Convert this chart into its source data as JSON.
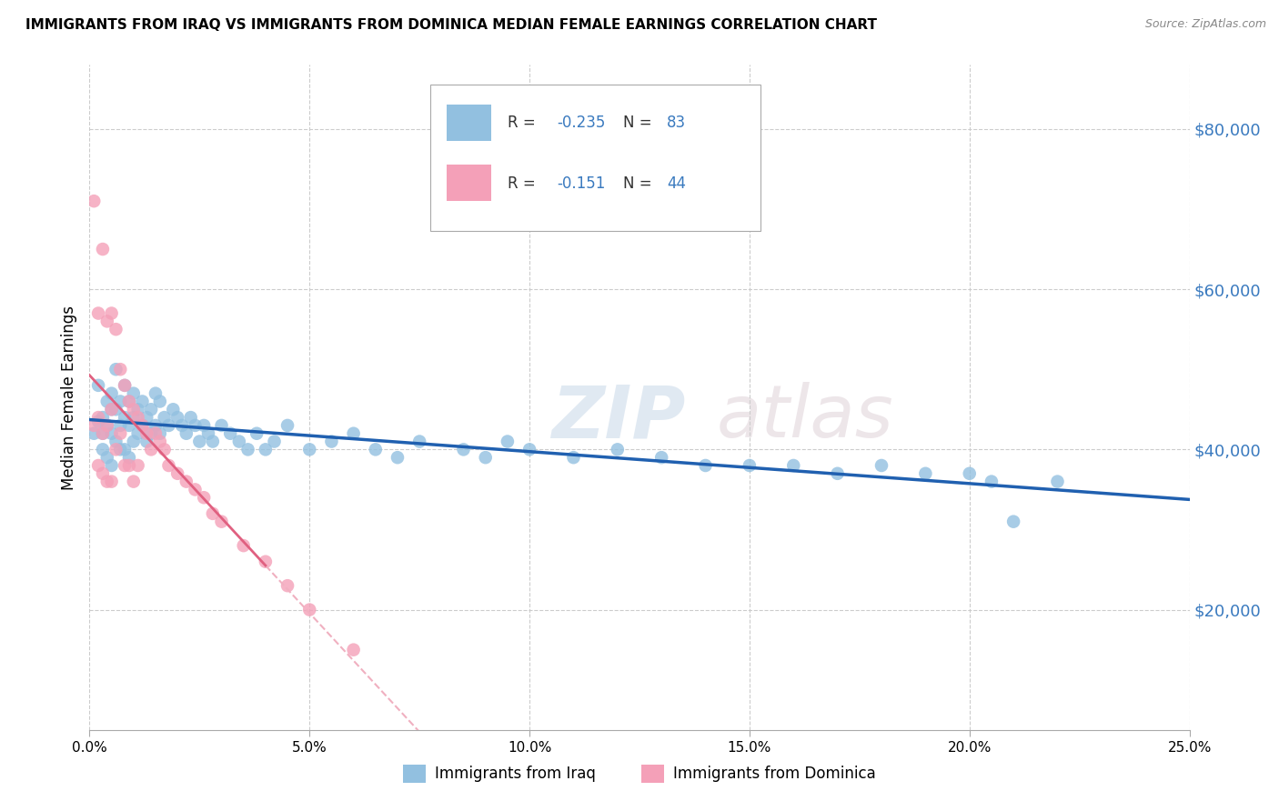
{
  "title": "IMMIGRANTS FROM IRAQ VS IMMIGRANTS FROM DOMINICA MEDIAN FEMALE EARNINGS CORRELATION CHART",
  "source": "Source: ZipAtlas.com",
  "ylabel": "Median Female Earnings",
  "y_ticks": [
    20000,
    40000,
    60000,
    80000
  ],
  "y_tick_labels": [
    "$20,000",
    "$40,000",
    "$60,000",
    "$80,000"
  ],
  "xlim": [
    0.0,
    0.25
  ],
  "ylim": [
    5000,
    88000
  ],
  "iraq_R": -0.235,
  "iraq_N": 83,
  "dominica_R": -0.151,
  "dominica_N": 44,
  "iraq_color": "#92c0e0",
  "dominica_color": "#f4a0b8",
  "iraq_line_color": "#2060b0",
  "dominica_line_solid_color": "#e06080",
  "dominica_line_dash_color": "#f0b0c0",
  "watermark_zip": "ZIP",
  "watermark_atlas": "atlas",
  "legend_label_iraq": "Immigrants from Iraq",
  "legend_label_dominica": "Immigrants from Dominica",
  "iraq_scatter_x": [
    0.001,
    0.002,
    0.002,
    0.003,
    0.003,
    0.003,
    0.004,
    0.004,
    0.004,
    0.005,
    0.005,
    0.005,
    0.005,
    0.006,
    0.006,
    0.006,
    0.007,
    0.007,
    0.007,
    0.008,
    0.008,
    0.008,
    0.009,
    0.009,
    0.009,
    0.01,
    0.01,
    0.01,
    0.011,
    0.011,
    0.012,
    0.012,
    0.013,
    0.013,
    0.014,
    0.014,
    0.015,
    0.015,
    0.016,
    0.016,
    0.017,
    0.018,
    0.019,
    0.02,
    0.021,
    0.022,
    0.023,
    0.024,
    0.025,
    0.026,
    0.027,
    0.028,
    0.03,
    0.032,
    0.034,
    0.036,
    0.038,
    0.04,
    0.042,
    0.045,
    0.05,
    0.055,
    0.06,
    0.065,
    0.07,
    0.075,
    0.085,
    0.09,
    0.095,
    0.1,
    0.11,
    0.12,
    0.13,
    0.14,
    0.15,
    0.16,
    0.17,
    0.18,
    0.19,
    0.2,
    0.205,
    0.21,
    0.22
  ],
  "iraq_scatter_y": [
    42000,
    43500,
    48000,
    44000,
    42000,
    40000,
    46000,
    43000,
    39000,
    47000,
    45000,
    42000,
    38000,
    50000,
    45000,
    41000,
    46000,
    43000,
    40000,
    48000,
    44000,
    40000,
    46000,
    43000,
    39000,
    47000,
    44000,
    41000,
    45000,
    42000,
    46000,
    43000,
    44000,
    41000,
    45000,
    42000,
    47000,
    43000,
    46000,
    42000,
    44000,
    43000,
    45000,
    44000,
    43000,
    42000,
    44000,
    43000,
    41000,
    43000,
    42000,
    41000,
    43000,
    42000,
    41000,
    40000,
    42000,
    40000,
    41000,
    43000,
    40000,
    41000,
    42000,
    40000,
    39000,
    41000,
    40000,
    39000,
    41000,
    40000,
    39000,
    40000,
    39000,
    38000,
    38000,
    38000,
    37000,
    38000,
    37000,
    37000,
    36000,
    31000,
    36000
  ],
  "dominica_scatter_x": [
    0.001,
    0.001,
    0.002,
    0.002,
    0.002,
    0.003,
    0.003,
    0.003,
    0.004,
    0.004,
    0.004,
    0.005,
    0.005,
    0.005,
    0.006,
    0.006,
    0.007,
    0.007,
    0.008,
    0.008,
    0.009,
    0.009,
    0.01,
    0.01,
    0.011,
    0.011,
    0.012,
    0.013,
    0.014,
    0.015,
    0.016,
    0.017,
    0.018,
    0.02,
    0.022,
    0.024,
    0.026,
    0.028,
    0.03,
    0.035,
    0.04,
    0.045,
    0.05,
    0.06
  ],
  "dominica_scatter_y": [
    71000,
    43000,
    57000,
    44000,
    38000,
    65000,
    42000,
    37000,
    56000,
    43000,
    36000,
    57000,
    45000,
    36000,
    55000,
    40000,
    50000,
    42000,
    48000,
    38000,
    46000,
    38000,
    45000,
    36000,
    44000,
    38000,
    43000,
    42000,
    40000,
    42000,
    41000,
    40000,
    38000,
    37000,
    36000,
    35000,
    34000,
    32000,
    31000,
    28000,
    26000,
    23000,
    20000,
    15000
  ]
}
